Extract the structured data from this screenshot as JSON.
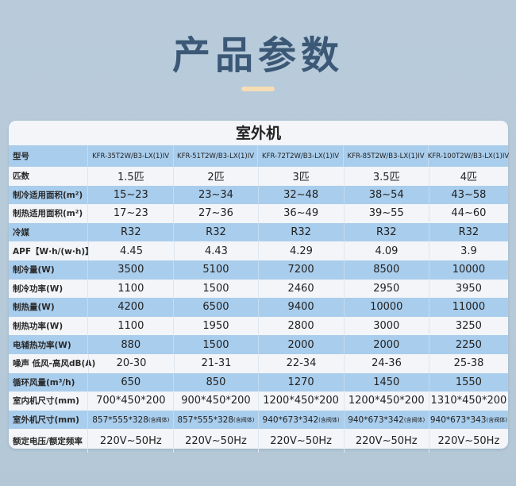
{
  "page_title": "产品参数",
  "accent_color": "#f6dcb4",
  "table": {
    "title": "室外机",
    "header_label": "型号",
    "models": [
      "KFR-35T2W/B3-LX(1)IV",
      "KFR-51T2W/B3-LX(1)IV",
      "KFR-72T2W/B3-LX(1)IV",
      "KFR-85T2W/B3-LX(1)IV",
      "KFR-100T2W/B3-LX(1)IV"
    ],
    "rows": [
      {
        "label": "匹数",
        "values": [
          "1.5匹",
          "2匹",
          "3匹",
          "3.5匹",
          "4匹"
        ]
      },
      {
        "label": "制冷适用面积(m²)",
        "values": [
          "15~23",
          "23~34",
          "32~48",
          "38~54",
          "43~58"
        ]
      },
      {
        "label": "制热适用面积(m²)",
        "values": [
          "17~23",
          "27~36",
          "36~49",
          "39~55",
          "44~60"
        ]
      },
      {
        "label": "冷媒",
        "values": [
          "R32",
          "R32",
          "R32",
          "R32",
          "R32"
        ]
      },
      {
        "label": "APF【W·h/(w·h)】",
        "values": [
          "4.45",
          "4.43",
          "4.29",
          "4.09",
          "3.9"
        ]
      },
      {
        "label": "制冷量(W)",
        "values": [
          "3500",
          "5100",
          "7200",
          "8500",
          "10000"
        ]
      },
      {
        "label": "制冷功率(W)",
        "values": [
          "1100",
          "1500",
          "2460",
          "2950",
          "3950"
        ]
      },
      {
        "label": "制热量(W)",
        "values": [
          "4200",
          "6500",
          "9400",
          "10000",
          "11000"
        ]
      },
      {
        "label": "制热功率(W)",
        "values": [
          "1100",
          "1950",
          "2800",
          "3000",
          "3250"
        ]
      },
      {
        "label": "电辅热功率(W)",
        "values": [
          "880",
          "1500",
          "2000",
          "2000",
          "2250"
        ]
      },
      {
        "label": "噪声 低风-高风dB(A)",
        "values": [
          "20-30",
          "21-31",
          "22-34",
          "24-36",
          "25-38"
        ]
      },
      {
        "label": "循环风量(m³/h)",
        "values": [
          "650",
          "850",
          "1270",
          "1450",
          "1550"
        ]
      },
      {
        "label": "室内机尺寸(mm)",
        "values": [
          "700*450*200",
          "900*450*200",
          "1200*450*200",
          "1200*450*200",
          "1310*450*200"
        ]
      },
      {
        "label": "室外机尺寸(mm)",
        "values": [
          "857*555*328",
          "857*555*328",
          "940*673*342",
          "940*673*342",
          "940*673*343"
        ],
        "note": "(含阀体)"
      },
      {
        "label": "额定电压/额定频率",
        "values": [
          "220V~50Hz",
          "220V~50Hz",
          "220V~50Hz",
          "220V~50Hz",
          "220V~50Hz"
        ]
      }
    ]
  }
}
